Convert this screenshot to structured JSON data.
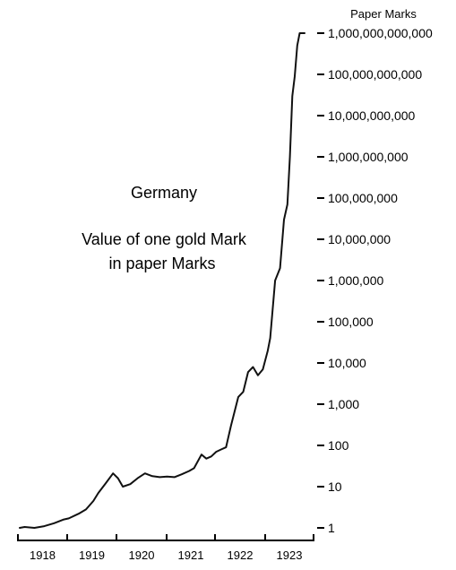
{
  "chart_data": {
    "type": "line",
    "title_lines": [
      "Germany",
      "Value of one gold Mark",
      "in paper Marks"
    ],
    "ylabel": "Paper Marks",
    "y_scale": "log",
    "ylim": [
      1,
      1000000000000
    ],
    "y_ticks": [
      {
        "value": 1,
        "label": "1"
      },
      {
        "value": 10,
        "label": "10"
      },
      {
        "value": 100,
        "label": "100"
      },
      {
        "value": 1000,
        "label": "1,000"
      },
      {
        "value": 10000,
        "label": "10,000"
      },
      {
        "value": 100000,
        "label": "100,000"
      },
      {
        "value": 1000000,
        "label": "1,000,000"
      },
      {
        "value": 10000000,
        "label": "10,000,000"
      },
      {
        "value": 100000000,
        "label": "100,000,000"
      },
      {
        "value": 1000000000,
        "label": "1,000,000,000"
      },
      {
        "value": 10000000000,
        "label": "10,000,000,000"
      },
      {
        "value": 100000000000,
        "label": "100,000,000,000"
      },
      {
        "value": 1000000000000,
        "label": "1,000,000,000,000"
      }
    ],
    "x_years": [
      "1918",
      "1919",
      "1920",
      "1921",
      "1922",
      "1923"
    ],
    "series": [
      {
        "x": [
          1918.0,
          1918.1,
          1918.3,
          1918.5,
          1918.7,
          1918.9,
          1919.0,
          1919.2,
          1919.35,
          1919.5,
          1919.6,
          1919.75,
          1919.9,
          1920.0,
          1920.1,
          1920.25,
          1920.4,
          1920.55,
          1920.7,
          1920.85,
          1921.0,
          1921.15,
          1921.3,
          1921.45,
          1921.55,
          1921.7,
          1921.8,
          1921.9,
          1922.0,
          1922.1,
          1922.2,
          1922.3,
          1922.45,
          1922.55,
          1922.65,
          1922.75,
          1922.85,
          1922.95,
          1923.05,
          1923.1,
          1923.2,
          1923.3,
          1923.38,
          1923.45,
          1923.5,
          1923.55,
          1923.6,
          1923.65,
          1923.7,
          1923.75,
          1923.8
        ],
        "y": [
          1.0,
          1.05,
          1.0,
          1.1,
          1.3,
          1.6,
          1.7,
          2.2,
          2.8,
          4.5,
          7.0,
          12.0,
          21.0,
          16.0,
          10.0,
          11.5,
          16.0,
          21.0,
          18.0,
          17.0,
          17.5,
          17.0,
          20.0,
          24.0,
          28.0,
          60.0,
          48.0,
          54.0,
          70.0,
          80.0,
          90.0,
          300.0,
          1500.0,
          2000.0,
          6000.0,
          8000.0,
          5000.0,
          7000.0,
          20000.0,
          40000.0,
          1000000.0,
          2000000.0,
          30000000.0,
          70000000.0,
          1000000000.0,
          30000000000.0,
          90000000000.0,
          500000000000.0,
          1000000000000.0,
          1000000000000.0,
          1000000000000.0
        ]
      }
    ]
  }
}
